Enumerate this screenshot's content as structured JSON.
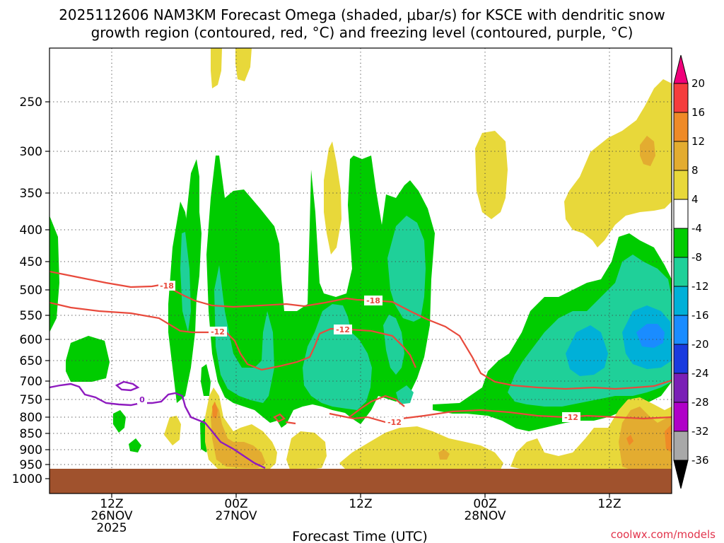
{
  "title": {
    "line1": "2025112606 NAM3KM Forecast Omega (shaded, μbar/s) for KSCE with dendritic snow",
    "line2": "growth region (contoured, red, °C) and freezing level (contoured, purple, °C)"
  },
  "credit": "coolwx.com/models",
  "chart_data": {
    "type": "heatmap",
    "title": "2025112606 NAM3KM Forecast Omega (shaded, μbar/s) for KSCE with dendritic snow growth region (contoured, red, °C) and freezing level (contoured, purple, °C)",
    "xlabel": "Forecast Time (UTC)",
    "ylabel": "",
    "x_hours_range": [
      0,
      60
    ],
    "x_ticks": [
      {
        "hour": 6,
        "label1": "12Z",
        "label2": "26NOV",
        "label3": "2025"
      },
      {
        "hour": 18,
        "label1": "00Z",
        "label2": "27NOV",
        "label3": ""
      },
      {
        "hour": 30,
        "label1": "12Z",
        "label2": "",
        "label3": ""
      },
      {
        "hour": 42,
        "label1": "00Z",
        "label2": "28NOV",
        "label3": ""
      },
      {
        "hour": 54,
        "label1": "12Z",
        "label2": "",
        "label3": ""
      }
    ],
    "y_ticks": [
      {
        "p": 250,
        "label": "250"
      },
      {
        "p": 300,
        "label": "300"
      },
      {
        "p": 350,
        "label": "350"
      },
      {
        "p": 400,
        "label": "400"
      },
      {
        "p": 450,
        "label": "450"
      },
      {
        "p": 500,
        "label": "500"
      },
      {
        "p": 550,
        "label": "550"
      },
      {
        "p": 600,
        "label": "600"
      },
      {
        "p": 650,
        "label": "650"
      },
      {
        "p": 700,
        "label": "700"
      },
      {
        "p": 750,
        "label": "750"
      },
      {
        "p": 800,
        "label": "800"
      },
      {
        "p": 850,
        "label": "850"
      },
      {
        "p": 900,
        "label": "900"
      },
      {
        "p": 950,
        "label": "950"
      },
      {
        "p": 1000,
        "label": "1000"
      }
    ],
    "colorbar": {
      "labels": [
        "20",
        "16",
        "12",
        "8",
        "4",
        "-4",
        "-8",
        "-12",
        "-16",
        "-20",
        "-24",
        "-28",
        "-32",
        "-36"
      ],
      "colors": [
        "#f0007a",
        "#f53d3d",
        "#ef8a27",
        "#e3ac30",
        "#e8d83a",
        "#ffffff",
        "#00cc00",
        "#1fd099",
        "#00b0d8",
        "#1a8cff",
        "#1a3adf",
        "#7a1fb6",
        "#b000c8",
        "#a8a8a8",
        "#000000"
      ]
    },
    "dendritic_contours": [
      {
        "label": "-18",
        "color": "#e84a3c"
      },
      {
        "label": "-12",
        "color": "#e84a3c"
      },
      {
        "label": "-12",
        "color": "#e84a3c"
      },
      {
        "label": "-12",
        "color": "#e84a3c"
      },
      {
        "label": "-18",
        "color": "#e84a3c"
      },
      {
        "label": "-12",
        "color": "#e84a3c"
      }
    ],
    "freezing_contour": {
      "label": "0",
      "color": "#8e1bbf"
    },
    "omega_colors": {
      "green": "#00cc00",
      "teal": "#1fd099",
      "cyan": "#00b0d8",
      "blue": "#1a8cff",
      "yellow": "#e8d83a",
      "gold": "#e3ac30",
      "orange": "#ef8a27",
      "ground": "#a0522d"
    }
  }
}
